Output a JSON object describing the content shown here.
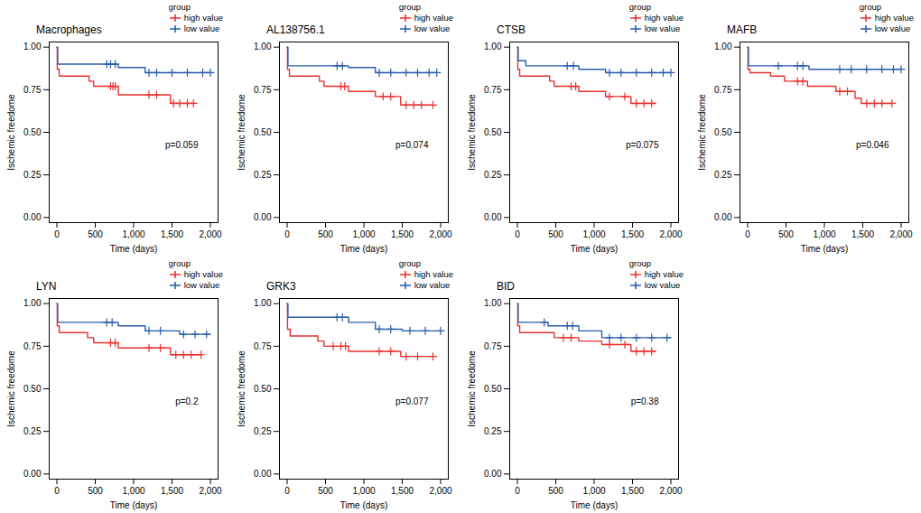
{
  "chart_data": [
    {
      "type": "line",
      "title": "Macrophages",
      "x_label": "Time (days)",
      "y_label": "Ischemic freedome",
      "annotation": "p=0.059",
      "xlim": [
        -100,
        2100
      ],
      "ylim": [
        -0.03,
        1.03
      ],
      "xticks": [
        0,
        500,
        1000,
        1500,
        2000
      ],
      "yticks": [
        {
          "value": 0,
          "label": "0.00"
        },
        {
          "value": 0.25,
          "label": "0.25"
        },
        {
          "value": 0.5,
          "label": "0.50"
        },
        {
          "value": 0.75,
          "label": "0.75"
        },
        {
          "value": 1,
          "label": "1.00"
        }
      ],
      "legend_title": "group",
      "series": [
        {
          "name": "high value",
          "color": "#e8312f",
          "line_style": "step",
          "marker": "plus",
          "x": [
            0,
            5,
            30,
            420,
            480,
            800,
            1480,
            1780
          ],
          "values": [
            1,
            0.87,
            0.83,
            0.8,
            0.77,
            0.72,
            0.67,
            0.67
          ],
          "censored": [
            [
              700,
              0.77
            ],
            [
              730,
              0.77
            ],
            [
              760,
              0.77
            ],
            [
              1200,
              0.72
            ],
            [
              1300,
              0.72
            ],
            [
              1520,
              0.67
            ],
            [
              1600,
              0.67
            ],
            [
              1700,
              0.67
            ],
            [
              1780,
              0.67
            ]
          ]
        },
        {
          "name": "low value",
          "color": "#2a5caa",
          "line_style": "step",
          "marker": "plus",
          "x": [
            0,
            10,
            800,
            1150,
            2000
          ],
          "values": [
            1,
            0.9,
            0.88,
            0.85,
            0.85
          ],
          "censored": [
            [
              650,
              0.9
            ],
            [
              700,
              0.9
            ],
            [
              760,
              0.9
            ],
            [
              1200,
              0.85
            ],
            [
              1300,
              0.85
            ],
            [
              1500,
              0.85
            ],
            [
              1700,
              0.85
            ],
            [
              1900,
              0.85
            ],
            [
              2000,
              0.85
            ]
          ]
        }
      ]
    },
    {
      "type": "line",
      "title": "AL138756.1",
      "x_label": "Time (days)",
      "y_label": "Ischemic freedome",
      "annotation": "p=0.074",
      "xlim": [
        -100,
        2100
      ],
      "ylim": [
        -0.03,
        1.03
      ],
      "xticks": [
        0,
        500,
        1000,
        1500,
        2000
      ],
      "yticks": [
        {
          "value": 0,
          "label": "0.00"
        },
        {
          "value": 0.25,
          "label": "0.25"
        },
        {
          "value": 0.5,
          "label": "0.50"
        },
        {
          "value": 0.75,
          "label": "0.75"
        },
        {
          "value": 1,
          "label": "1.00"
        }
      ],
      "legend_title": "group",
      "series": [
        {
          "name": "high value",
          "color": "#e8312f",
          "line_style": "step",
          "marker": "plus",
          "x": [
            0,
            5,
            30,
            420,
            480,
            800,
            1150,
            1480,
            1900
          ],
          "values": [
            1,
            0.87,
            0.83,
            0.8,
            0.77,
            0.74,
            0.71,
            0.66,
            0.66
          ],
          "censored": [
            [
              700,
              0.77
            ],
            [
              750,
              0.77
            ],
            [
              1250,
              0.71
            ],
            [
              1350,
              0.71
            ],
            [
              1550,
              0.66
            ],
            [
              1650,
              0.66
            ],
            [
              1750,
              0.66
            ],
            [
              1900,
              0.66
            ]
          ]
        },
        {
          "name": "low value",
          "color": "#2a5caa",
          "line_style": "step",
          "marker": "plus",
          "x": [
            0,
            10,
            800,
            1150,
            1950
          ],
          "values": [
            1,
            0.89,
            0.88,
            0.85,
            0.85
          ],
          "censored": [
            [
              650,
              0.89
            ],
            [
              720,
              0.89
            ],
            [
              1200,
              0.85
            ],
            [
              1350,
              0.85
            ],
            [
              1550,
              0.85
            ],
            [
              1700,
              0.85
            ],
            [
              1850,
              0.85
            ],
            [
              1950,
              0.85
            ]
          ]
        }
      ]
    },
    {
      "type": "line",
      "title": "CTSB",
      "x_label": "Time (days)",
      "y_label": "Ischemic freedome",
      "annotation": "p=0.075",
      "xlim": [
        -100,
        2100
      ],
      "ylim": [
        -0.03,
        1.03
      ],
      "xticks": [
        0,
        500,
        1000,
        1500,
        2000
      ],
      "yticks": [
        {
          "value": 0,
          "label": "0.00"
        },
        {
          "value": 0.25,
          "label": "0.25"
        },
        {
          "value": 0.5,
          "label": "0.50"
        },
        {
          "value": 0.75,
          "label": "0.75"
        },
        {
          "value": 1,
          "label": "1.00"
        }
      ],
      "legend_title": "group",
      "series": [
        {
          "name": "high value",
          "color": "#e8312f",
          "line_style": "step",
          "marker": "plus",
          "x": [
            0,
            5,
            30,
            420,
            480,
            800,
            1150,
            1480,
            1800
          ],
          "values": [
            1,
            0.87,
            0.83,
            0.8,
            0.77,
            0.74,
            0.71,
            0.67,
            0.67
          ],
          "censored": [
            [
              700,
              0.77
            ],
            [
              760,
              0.77
            ],
            [
              1200,
              0.71
            ],
            [
              1400,
              0.71
            ],
            [
              1550,
              0.67
            ],
            [
              1650,
              0.67
            ],
            [
              1750,
              0.67
            ]
          ]
        },
        {
          "name": "low value",
          "color": "#2a5caa",
          "line_style": "step",
          "marker": "plus",
          "x": [
            0,
            10,
            110,
            800,
            1150,
            2000
          ],
          "values": [
            1,
            0.92,
            0.89,
            0.87,
            0.85,
            0.85
          ],
          "censored": [
            [
              650,
              0.89
            ],
            [
              730,
              0.89
            ],
            [
              1200,
              0.85
            ],
            [
              1350,
              0.85
            ],
            [
              1550,
              0.85
            ],
            [
              1750,
              0.85
            ],
            [
              1900,
              0.85
            ],
            [
              2000,
              0.85
            ]
          ]
        }
      ]
    },
    {
      "type": "line",
      "title": "MAFB",
      "x_label": "Time (days)",
      "y_label": "Ischemic freedome",
      "annotation": "p=0.046",
      "xlim": [
        -100,
        2100
      ],
      "ylim": [
        -0.03,
        1.03
      ],
      "xticks": [
        0,
        500,
        1000,
        1500,
        2000
      ],
      "yticks": [
        {
          "value": 0,
          "label": "0.00"
        },
        {
          "value": 0.25,
          "label": "0.25"
        },
        {
          "value": 0.5,
          "label": "0.50"
        },
        {
          "value": 0.75,
          "label": "0.75"
        },
        {
          "value": 1,
          "label": "1.00"
        }
      ],
      "legend_title": "group",
      "series": [
        {
          "name": "high value",
          "color": "#e8312f",
          "line_style": "step",
          "marker": "plus",
          "x": [
            0,
            5,
            30,
            300,
            480,
            780,
            1150,
            1400,
            1480,
            1880
          ],
          "values": [
            1,
            0.87,
            0.85,
            0.83,
            0.8,
            0.77,
            0.74,
            0.7,
            0.67,
            0.67
          ],
          "censored": [
            [
              650,
              0.8
            ],
            [
              720,
              0.8
            ],
            [
              1200,
              0.74
            ],
            [
              1300,
              0.74
            ],
            [
              1550,
              0.67
            ],
            [
              1650,
              0.67
            ],
            [
              1750,
              0.67
            ],
            [
              1880,
              0.67
            ]
          ]
        },
        {
          "name": "low value",
          "color": "#2a5caa",
          "line_style": "step",
          "marker": "plus",
          "x": [
            0,
            10,
            800,
            2000
          ],
          "values": [
            1,
            0.89,
            0.87,
            0.87
          ],
          "censored": [
            [
              400,
              0.89
            ],
            [
              650,
              0.89
            ],
            [
              720,
              0.89
            ],
            [
              1200,
              0.87
            ],
            [
              1350,
              0.87
            ],
            [
              1550,
              0.87
            ],
            [
              1750,
              0.87
            ],
            [
              1900,
              0.87
            ],
            [
              2000,
              0.87
            ]
          ]
        }
      ]
    },
    {
      "type": "line",
      "title": "LYN",
      "x_label": "Time (days)",
      "y_label": "Ischemic freedome",
      "annotation": "p=0.2",
      "xlim": [
        -100,
        2100
      ],
      "ylim": [
        -0.03,
        1.03
      ],
      "xticks": [
        0,
        500,
        1000,
        1500,
        2000
      ],
      "yticks": [
        {
          "value": 0,
          "label": "0.00"
        },
        {
          "value": 0.25,
          "label": "0.25"
        },
        {
          "value": 0.5,
          "label": "0.50"
        },
        {
          "value": 0.75,
          "label": "0.75"
        },
        {
          "value": 1,
          "label": "1.00"
        }
      ],
      "legend_title": "group",
      "series": [
        {
          "name": "high value",
          "color": "#e8312f",
          "line_style": "step",
          "marker": "plus",
          "x": [
            0,
            5,
            30,
            400,
            480,
            800,
            1480,
            1880
          ],
          "values": [
            1,
            0.87,
            0.83,
            0.8,
            0.77,
            0.74,
            0.7,
            0.7
          ],
          "censored": [
            [
              700,
              0.77
            ],
            [
              760,
              0.77
            ],
            [
              1200,
              0.74
            ],
            [
              1350,
              0.74
            ],
            [
              1550,
              0.7
            ],
            [
              1650,
              0.7
            ],
            [
              1750,
              0.7
            ],
            [
              1880,
              0.7
            ]
          ]
        },
        {
          "name": "low value",
          "color": "#2a5caa",
          "line_style": "step",
          "marker": "plus",
          "x": [
            0,
            10,
            800,
            1150,
            1600,
            2000
          ],
          "values": [
            1,
            0.89,
            0.87,
            0.84,
            0.82,
            0.82
          ],
          "censored": [
            [
              650,
              0.89
            ],
            [
              720,
              0.89
            ],
            [
              1200,
              0.84
            ],
            [
              1350,
              0.84
            ],
            [
              1650,
              0.82
            ],
            [
              1800,
              0.82
            ],
            [
              1950,
              0.82
            ]
          ]
        }
      ]
    },
    {
      "type": "line",
      "title": "GRK3",
      "x_label": "Time (days)",
      "y_label": "Ischemic freedome",
      "annotation": "p=0.077",
      "xlim": [
        -100,
        2100
      ],
      "ylim": [
        -0.03,
        1.03
      ],
      "xticks": [
        0,
        500,
        1000,
        1500,
        2000
      ],
      "yticks": [
        {
          "value": 0,
          "label": "0.00"
        },
        {
          "value": 0.25,
          "label": "0.25"
        },
        {
          "value": 0.5,
          "label": "0.50"
        },
        {
          "value": 0.75,
          "label": "0.75"
        },
        {
          "value": 1,
          "label": "1.00"
        }
      ],
      "legend_title": "group",
      "series": [
        {
          "name": "high value",
          "color": "#e8312f",
          "line_style": "step",
          "marker": "plus",
          "x": [
            0,
            5,
            40,
            400,
            480,
            800,
            1480,
            1900
          ],
          "values": [
            1,
            0.85,
            0.81,
            0.78,
            0.75,
            0.72,
            0.69,
            0.69
          ],
          "censored": [
            [
              600,
              0.75
            ],
            [
              700,
              0.75
            ],
            [
              760,
              0.75
            ],
            [
              1200,
              0.72
            ],
            [
              1350,
              0.72
            ],
            [
              1550,
              0.69
            ],
            [
              1700,
              0.69
            ],
            [
              1900,
              0.69
            ]
          ]
        },
        {
          "name": "low value",
          "color": "#2a5caa",
          "line_style": "step",
          "marker": "plus",
          "x": [
            0,
            10,
            800,
            1150,
            1500,
            2000
          ],
          "values": [
            1,
            0.92,
            0.89,
            0.85,
            0.84,
            0.84
          ],
          "censored": [
            [
              650,
              0.92
            ],
            [
              720,
              0.92
            ],
            [
              1200,
              0.85
            ],
            [
              1350,
              0.85
            ],
            [
              1600,
              0.84
            ],
            [
              1800,
              0.84
            ],
            [
              2000,
              0.84
            ]
          ]
        }
      ]
    },
    {
      "type": "line",
      "title": "BID",
      "x_label": "Time (days)",
      "y_label": "Ischemic freedome",
      "annotation": "p=0.38",
      "xlim": [
        -100,
        2100
      ],
      "ylim": [
        -0.03,
        1.03
      ],
      "xticks": [
        0,
        500,
        1000,
        1500,
        2000
      ],
      "yticks": [
        {
          "value": 0,
          "label": "0.00"
        },
        {
          "value": 0.25,
          "label": "0.25"
        },
        {
          "value": 0.5,
          "label": "0.50"
        },
        {
          "value": 0.75,
          "label": "0.75"
        },
        {
          "value": 1,
          "label": "1.00"
        }
      ],
      "legend_title": "group",
      "series": [
        {
          "name": "high value",
          "color": "#e8312f",
          "line_style": "step",
          "marker": "plus",
          "x": [
            0,
            5,
            30,
            480,
            800,
            1100,
            1480,
            1800
          ],
          "values": [
            1,
            0.87,
            0.83,
            0.8,
            0.78,
            0.76,
            0.72,
            0.72
          ],
          "censored": [
            [
              600,
              0.8
            ],
            [
              700,
              0.8
            ],
            [
              1200,
              0.76
            ],
            [
              1400,
              0.76
            ],
            [
              1550,
              0.72
            ],
            [
              1650,
              0.72
            ],
            [
              1750,
              0.72
            ]
          ]
        },
        {
          "name": "low value",
          "color": "#2a5caa",
          "line_style": "step",
          "marker": "plus",
          "x": [
            0,
            10,
            400,
            800,
            1100,
            2000
          ],
          "values": [
            1,
            0.89,
            0.87,
            0.84,
            0.8,
            0.8
          ],
          "censored": [
            [
              350,
              0.89
            ],
            [
              650,
              0.87
            ],
            [
              720,
              0.87
            ],
            [
              1200,
              0.8
            ],
            [
              1350,
              0.8
            ],
            [
              1550,
              0.8
            ],
            [
              1750,
              0.8
            ],
            [
              1950,
              0.8
            ]
          ]
        }
      ]
    }
  ]
}
